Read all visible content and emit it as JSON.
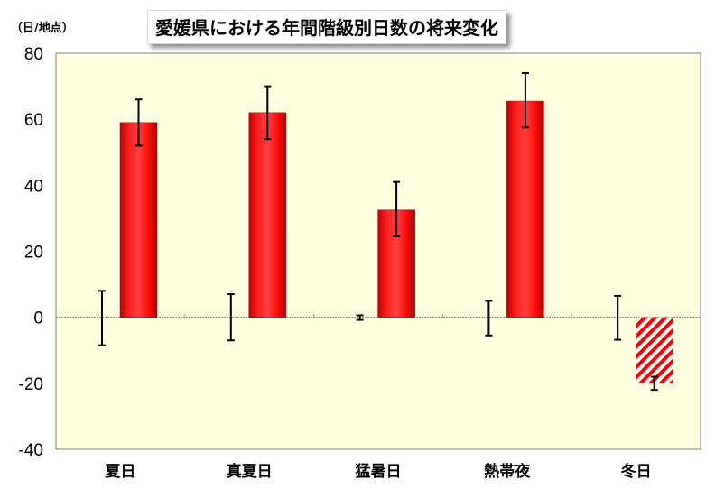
{
  "chart_data": {
    "type": "bar",
    "title": "愛媛県における年間階級別日数の将来変化",
    "ylabel": "（日/地点）",
    "categories": [
      "夏日",
      "真夏日",
      "猛暑日",
      "熱帯夜",
      "冬日"
    ],
    "values": [
      59,
      62,
      32.5,
      65.5,
      -20
    ],
    "value_error": [
      [
        52,
        66
      ],
      [
        54,
        70
      ],
      [
        24.5,
        41
      ],
      [
        57.5,
        74
      ],
      [
        -22,
        -18
      ]
    ],
    "baseline_error": [
      [
        -8.5,
        8
      ],
      [
        -7,
        7
      ],
      [
        -0.8,
        0.6
      ],
      [
        -5.5,
        5
      ],
      [
        -6.8,
        6.5
      ]
    ],
    "ylim": [
      -40,
      80
    ],
    "yticks": [
      "80",
      "60",
      "40",
      "20",
      "0",
      "-20",
      "-40"
    ],
    "grid": false,
    "colors": {
      "bar": "#ff0000",
      "negative_hatch": "#ff0000",
      "plot_background": "#ffffe0"
    }
  }
}
